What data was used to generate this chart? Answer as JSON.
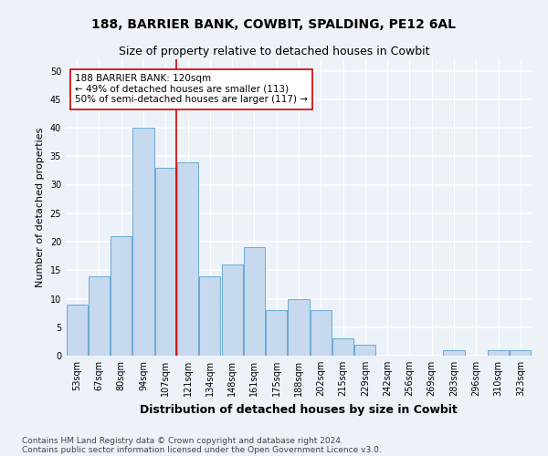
{
  "title1": "188, BARRIER BANK, COWBIT, SPALDING, PE12 6AL",
  "title2": "Size of property relative to detached houses in Cowbit",
  "xlabel": "Distribution of detached houses by size in Cowbit",
  "ylabel": "Number of detached properties",
  "categories": [
    "53sqm",
    "67sqm",
    "80sqm",
    "94sqm",
    "107sqm",
    "121sqm",
    "134sqm",
    "148sqm",
    "161sqm",
    "175sqm",
    "188sqm",
    "202sqm",
    "215sqm",
    "229sqm",
    "242sqm",
    "256sqm",
    "269sqm",
    "283sqm",
    "296sqm",
    "310sqm",
    "323sqm"
  ],
  "values": [
    9,
    14,
    21,
    40,
    33,
    34,
    14,
    16,
    19,
    8,
    10,
    8,
    3,
    2,
    0,
    0,
    0,
    1,
    0,
    1,
    1
  ],
  "bar_color": "#c6d9ee",
  "bar_edge_color": "#6aaad4",
  "vline_color": "#cc0000",
  "annotation_text": "188 BARRIER BANK: 120sqm\n← 49% of detached houses are smaller (113)\n50% of semi-detached houses are larger (117) →",
  "annotation_box_color": "#ffffff",
  "annotation_box_edge": "#cc0000",
  "footnote1": "Contains HM Land Registry data © Crown copyright and database right 2024.",
  "footnote2": "Contains public sector information licensed under the Open Government Licence v3.0.",
  "ylim": [
    0,
    52
  ],
  "yticks": [
    0,
    5,
    10,
    15,
    20,
    25,
    30,
    35,
    40,
    45,
    50
  ],
  "bg_color": "#edf2f9",
  "plot_bg_color": "#edf2f9",
  "grid_color": "#ffffff",
  "title1_fontsize": 10,
  "title2_fontsize": 9,
  "xlabel_fontsize": 9,
  "ylabel_fontsize": 8,
  "tick_fontsize": 7,
  "annotation_fontsize": 7.5,
  "footnote_fontsize": 6.5
}
